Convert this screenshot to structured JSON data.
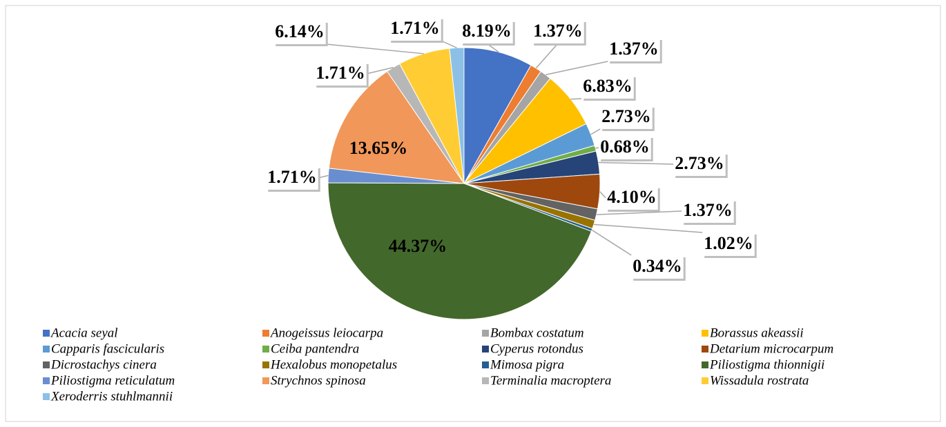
{
  "chart_data": {
    "type": "pie",
    "categories": [
      "Acacia seyal",
      "Anogeissus leiocarpa",
      "Bombax costatum",
      "Borassus akeassii",
      "Capparis fascicularis",
      "Ceiba pantendra",
      "Cyperus rotondus",
      "Detarium microcarpum",
      "Dicrostachys cinera",
      "Hexalobus monopetalus",
      "Mimosa pigra",
      "Piliostigma thionnigii",
      "Piliostigma reticulatum",
      "Strychnos spinosa",
      "Terminalia macroptera",
      "Wissadula rostrata",
      "Xeroderris stuhlmannii"
    ],
    "values": [
      8.19,
      1.37,
      1.37,
      6.83,
      2.73,
      0.68,
      2.73,
      4.1,
      1.37,
      1.02,
      0.34,
      44.37,
      1.71,
      13.65,
      1.71,
      6.14,
      1.71
    ],
    "value_labels": [
      "8.19%",
      "1.37%",
      "1.37%",
      "6.83%",
      "2.73%",
      "0.68%",
      "2.73%",
      "4.10%",
      "1.37%",
      "1.02%",
      "0.34%",
      "44.37%",
      "1.71%",
      "13.65%",
      "1.71%",
      "6.14%",
      "1.71%"
    ],
    "colors": [
      "#4472c4",
      "#ed7d31",
      "#a5a5a5",
      "#ffc000",
      "#5b9bd5",
      "#70ad47",
      "#264478",
      "#9e480e",
      "#636363",
      "#997300",
      "#255e91",
      "#43682b",
      "#698ed0",
      "#f1975a",
      "#b7b7b7",
      "#ffcd33",
      "#8cc0e6"
    ],
    "legend": "bottom"
  }
}
